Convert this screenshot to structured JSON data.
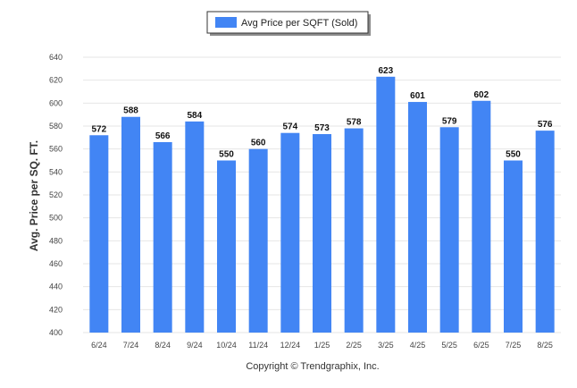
{
  "chart_data": {
    "type": "bar",
    "title": "",
    "xlabel": "",
    "ylabel": "Avg. Price per SQ. FT.",
    "categories": [
      "6/24",
      "7/24",
      "8/24",
      "9/24",
      "10/24",
      "11/24",
      "12/24",
      "1/25",
      "2/25",
      "3/25",
      "4/25",
      "5/25",
      "6/25",
      "7/25",
      "8/25"
    ],
    "series": [
      {
        "name": "Avg Price per SQFT (Sold)",
        "values": [
          572,
          588,
          566,
          584,
          550,
          560,
          574,
          573,
          578,
          623,
          601,
          579,
          602,
          550,
          576
        ]
      }
    ],
    "ylim": [
      400,
      640
    ],
    "yticks": [
      400,
      420,
      440,
      460,
      480,
      500,
      520,
      540,
      560,
      580,
      600,
      620,
      640
    ],
    "grid": true,
    "legend_position": "top-center",
    "bar_color": "#4285f4",
    "data_labels": true
  },
  "footer": {
    "copyright": "Copyright © Trendgraphix, Inc."
  }
}
